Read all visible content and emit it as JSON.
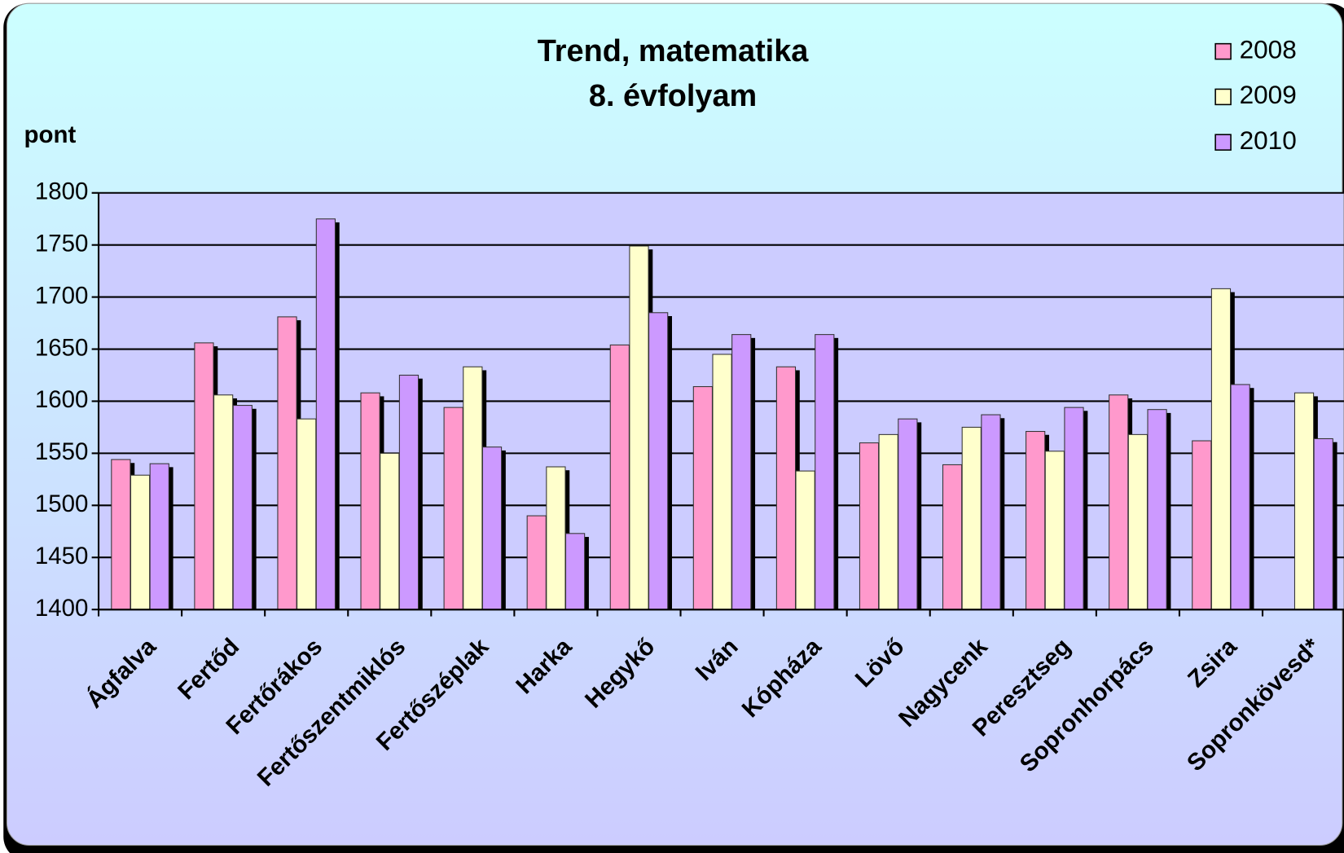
{
  "chart_data": {
    "type": "bar",
    "title": "Trend, matematika",
    "subtitle": "8. évfolyam",
    "y_label": "pont",
    "categories": [
      "Ágfalva",
      "Fertőd",
      "Fertőrákos",
      "Fertőszentmiklós",
      "Fertőszéplak",
      "Harka",
      "Hegykő",
      "Iván",
      "Kópháza",
      "Lövő",
      "Nagycenk",
      "Peresztseg",
      "Sopronhorpács",
      "Zsira",
      "Sopronkövesd*"
    ],
    "series": [
      {
        "name": "2008",
        "color": "#ff99cc",
        "values": [
          1544,
          1656,
          1681,
          1608,
          1594,
          1490,
          1654,
          1614,
          1633,
          1560,
          1539,
          1571,
          1606,
          1562,
          null
        ]
      },
      {
        "name": "2009",
        "color": "#ffffcc",
        "values": [
          1529,
          1606,
          1583,
          1550,
          1633,
          1537,
          1749,
          1645,
          1533,
          1568,
          1575,
          1552,
          1568,
          1708,
          1608
        ]
      },
      {
        "name": "2010",
        "color": "#cc99ff",
        "values": [
          1540,
          1596,
          1775,
          1625,
          1556,
          1473,
          1685,
          1664,
          1664,
          1583,
          1587,
          1594,
          1592,
          1616,
          1564
        ]
      }
    ],
    "ylim": [
      1400,
      1800
    ],
    "yticks": [
      1400,
      1450,
      1500,
      1550,
      1600,
      1650,
      1700,
      1750,
      1800
    ],
    "grid": true,
    "legend": "top-right"
  }
}
